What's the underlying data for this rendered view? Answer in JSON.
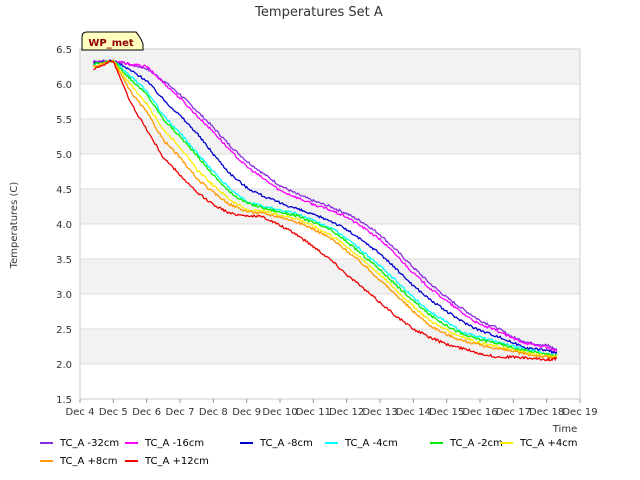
{
  "chart_data": {
    "type": "line",
    "title": "Temperatures Set A",
    "site_badge": "WP_met",
    "xlabel": "Time",
    "ylabel": "Temperatures (C)",
    "x_tick_labels": [
      "Dec 4",
      "Dec 5",
      "Dec 6",
      "Dec 7",
      "Dec 8",
      "Dec 9",
      "Dec 10",
      "Dec 11",
      "Dec 12",
      "Dec 13",
      "Dec 14",
      "Dec 15",
      "Dec 16",
      "Dec 17",
      "Dec 18",
      "Dec 19"
    ],
    "xlim": [
      0,
      15
    ],
    "ylim": [
      1.5,
      6.5
    ],
    "y_ticks": [
      "1.5",
      "2.0",
      "2.5",
      "3.0",
      "3.5",
      "4.0",
      "4.5",
      "5.0",
      "5.5",
      "6.0",
      "6.5"
    ],
    "x_units": "days since Dec 4",
    "series": [
      {
        "name": "TC_A -32cm",
        "color": "#8a2be2",
        "x": [
          0.4,
          1.0,
          1.5,
          2.0,
          2.5,
          3.0,
          3.5,
          4.0,
          4.5,
          5.0,
          5.5,
          6.0,
          6.5,
          7.0,
          7.5,
          8.0,
          8.5,
          9.0,
          9.5,
          10.0,
          10.5,
          11.0,
          11.5,
          12.0,
          12.5,
          13.0,
          13.5,
          14.0,
          14.3
        ],
        "y": [
          6.33,
          6.33,
          6.28,
          6.22,
          6.05,
          5.85,
          5.62,
          5.38,
          5.12,
          4.9,
          4.72,
          4.55,
          4.43,
          4.33,
          4.25,
          4.15,
          4.02,
          3.85,
          3.62,
          3.38,
          3.15,
          2.95,
          2.78,
          2.62,
          2.52,
          2.38,
          2.3,
          2.27,
          2.2
        ]
      },
      {
        "name": "TC_A -16cm",
        "color": "#ff00ff",
        "x": [
          0.4,
          1.0,
          1.5,
          2.0,
          2.5,
          3.0,
          3.5,
          4.0,
          4.5,
          5.0,
          5.5,
          6.0,
          6.5,
          7.0,
          7.5,
          8.0,
          8.5,
          9.0,
          9.5,
          10.0,
          10.5,
          11.0,
          11.5,
          12.0,
          12.5,
          13.0,
          13.5,
          14.0,
          14.3
        ],
        "y": [
          6.3,
          6.33,
          6.28,
          6.25,
          6.02,
          5.8,
          5.55,
          5.32,
          5.05,
          4.82,
          4.65,
          4.48,
          4.38,
          4.28,
          4.2,
          4.1,
          3.95,
          3.78,
          3.55,
          3.3,
          3.08,
          2.9,
          2.72,
          2.56,
          2.48,
          2.36,
          2.28,
          2.24,
          2.18
        ]
      },
      {
        "name": "TC_A -8cm",
        "color": "#0000cd",
        "x": [
          0.4,
          1.0,
          1.5,
          2.0,
          2.5,
          3.0,
          3.5,
          4.0,
          4.5,
          5.0,
          5.5,
          6.0,
          6.5,
          7.0,
          7.5,
          8.0,
          8.5,
          9.0,
          9.5,
          10.0,
          10.5,
          11.0,
          11.5,
          12.0,
          12.5,
          13.0,
          13.5,
          14.0,
          14.3
        ],
        "y": [
          6.3,
          6.33,
          6.2,
          6.05,
          5.78,
          5.55,
          5.3,
          5.0,
          4.72,
          4.52,
          4.4,
          4.3,
          4.22,
          4.13,
          4.05,
          3.92,
          3.75,
          3.58,
          3.35,
          3.12,
          2.92,
          2.75,
          2.6,
          2.48,
          2.4,
          2.3,
          2.22,
          2.2,
          2.15
        ]
      },
      {
        "name": "TC_A -4cm",
        "color": "#00ffff",
        "x": [
          0.4,
          1.0,
          1.5,
          2.0,
          2.5,
          3.0,
          3.5,
          4.0,
          4.5,
          5.0,
          5.5,
          6.0,
          6.5,
          7.0,
          7.5,
          8.0,
          8.5,
          9.0,
          9.5,
          10.0,
          10.5,
          11.0,
          11.5,
          12.0,
          12.5,
          13.0,
          13.5,
          14.0,
          14.3
        ],
        "y": [
          6.28,
          6.33,
          6.12,
          5.9,
          5.55,
          5.3,
          5.02,
          4.75,
          4.5,
          4.32,
          4.25,
          4.2,
          4.15,
          4.05,
          3.95,
          3.8,
          3.6,
          3.4,
          3.18,
          2.95,
          2.75,
          2.6,
          2.45,
          2.38,
          2.32,
          2.25,
          2.2,
          2.15,
          2.12
        ]
      },
      {
        "name": "TC_A -2cm",
        "color": "#00ee00",
        "x": [
          0.4,
          1.0,
          1.5,
          2.0,
          2.5,
          3.0,
          3.5,
          4.0,
          4.5,
          5.0,
          5.5,
          6.0,
          6.5,
          7.0,
          7.5,
          8.0,
          8.5,
          9.0,
          9.5,
          10.0,
          10.5,
          11.0,
          11.5,
          12.0,
          12.5,
          13.0,
          13.5,
          14.0,
          14.3
        ],
        "y": [
          6.28,
          6.33,
          6.08,
          5.85,
          5.5,
          5.25,
          4.98,
          4.7,
          4.45,
          4.3,
          4.23,
          4.17,
          4.12,
          4.02,
          3.92,
          3.75,
          3.55,
          3.35,
          3.12,
          2.9,
          2.7,
          2.55,
          2.42,
          2.35,
          2.3,
          2.23,
          2.18,
          2.14,
          2.12
        ]
      },
      {
        "name": "TC_A +4cm",
        "color": "#ffee00",
        "x": [
          0.4,
          1.0,
          1.5,
          2.0,
          2.5,
          3.0,
          3.5,
          4.0,
          4.5,
          5.0,
          5.5,
          6.0,
          6.5,
          7.0,
          7.5,
          8.0,
          8.5,
          9.0,
          9.5,
          10.0,
          10.5,
          11.0,
          11.5,
          12.0,
          12.5,
          13.0,
          13.5,
          14.0,
          14.3
        ],
        "y": [
          6.25,
          6.33,
          6.0,
          5.72,
          5.35,
          5.1,
          4.78,
          4.55,
          4.35,
          4.2,
          4.18,
          4.13,
          4.08,
          3.97,
          3.85,
          3.68,
          3.48,
          3.28,
          3.05,
          2.82,
          2.62,
          2.48,
          2.38,
          2.3,
          2.25,
          2.2,
          2.15,
          2.12,
          2.1
        ]
      },
      {
        "name": "TC_A +8cm",
        "color": "#ff9900",
        "x": [
          0.4,
          1.0,
          1.5,
          2.0,
          2.5,
          3.0,
          3.5,
          4.0,
          4.5,
          5.0,
          5.5,
          6.0,
          6.5,
          7.0,
          7.5,
          8.0,
          8.5,
          9.0,
          9.5,
          10.0,
          10.5,
          11.0,
          11.5,
          12.0,
          12.5,
          13.0,
          13.5,
          14.0,
          14.3
        ],
        "y": [
          6.25,
          6.33,
          5.9,
          5.6,
          5.2,
          4.95,
          4.65,
          4.45,
          4.28,
          4.18,
          4.15,
          4.1,
          4.03,
          3.93,
          3.8,
          3.62,
          3.42,
          3.2,
          2.98,
          2.75,
          2.55,
          2.42,
          2.33,
          2.27,
          2.22,
          2.18,
          2.13,
          2.1,
          2.08
        ]
      },
      {
        "name": "TC_A +12cm",
        "color": "#ee0000",
        "x": [
          0.4,
          1.0,
          1.5,
          2.0,
          2.5,
          3.0,
          3.5,
          4.0,
          4.5,
          5.0,
          5.5,
          6.0,
          6.5,
          7.0,
          7.5,
          8.0,
          8.5,
          9.0,
          9.5,
          10.0,
          10.5,
          11.0,
          11.5,
          12.0,
          12.5,
          13.0,
          13.5,
          14.0,
          14.3
        ],
        "y": [
          6.22,
          6.33,
          5.75,
          5.35,
          4.95,
          4.7,
          4.45,
          4.28,
          4.15,
          4.12,
          4.1,
          3.98,
          3.85,
          3.68,
          3.5,
          3.28,
          3.08,
          2.88,
          2.68,
          2.5,
          2.38,
          2.28,
          2.22,
          2.15,
          2.1,
          2.1,
          2.08,
          2.06,
          2.08
        ]
      }
    ],
    "legend_position": "bottom"
  }
}
